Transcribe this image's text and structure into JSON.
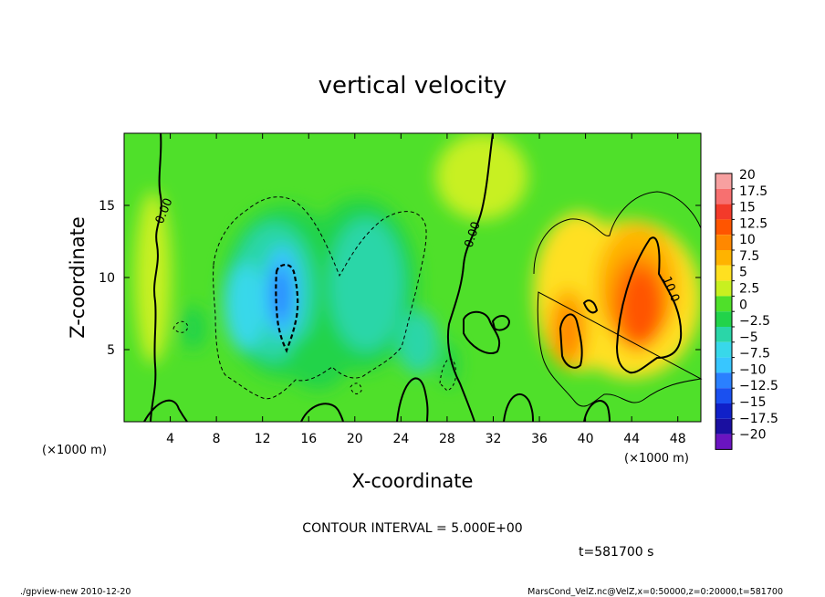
{
  "chart_data": {
    "type": "heatmap",
    "title": "vertical velocity",
    "xlabel": "X-coordinate",
    "ylabel": "Z-coordinate",
    "x_unit_label": "(×1000 m)",
    "z_unit_label": "(×1000 m)",
    "xlim": [
      0,
      50
    ],
    "ylim": [
      0,
      20
    ],
    "x_ticks": [
      4,
      8,
      12,
      16,
      20,
      24,
      28,
      32,
      36,
      40,
      44,
      48
    ],
    "y_ticks": [
      5,
      10,
      15
    ],
    "contour_interval_text": "CONTOUR INTERVAL = 5.000E+00",
    "time_text": "t=581700 s",
    "contour_labels": [
      "0.00",
      "0.00",
      "10.0"
    ],
    "colorbar": {
      "labels": [
        "20",
        "17.5",
        "15",
        "12.5",
        "10",
        "7.5",
        "5",
        "2.5",
        "0",
        "−2.5",
        "−5",
        "−7.5",
        "−10",
        "−12.5",
        "−15",
        "−17.5",
        "−20"
      ],
      "values": [
        20,
        17.5,
        15,
        12.5,
        10,
        7.5,
        5,
        2.5,
        0,
        -2.5,
        -5,
        -7.5,
        -10,
        -12.5,
        -15,
        -17.5,
        -20
      ],
      "colors": [
        "#f7a0a0",
        "#f77070",
        "#f33a2a",
        "#ff5500",
        "#ff8800",
        "#ffb300",
        "#ffe020",
        "#c8f020",
        "#4fe02a",
        "#22d34a",
        "#2ad6a8",
        "#38d8ea",
        "#38c6ff",
        "#2a80ff",
        "#1a50f0",
        "#1020c8",
        "#1a0fa0",
        "#6a14c0"
      ]
    },
    "features": [
      {
        "kind": "updraft",
        "x": 44.5,
        "z": 8.5,
        "peak": 14
      },
      {
        "kind": "updraft",
        "x": 38.5,
        "z": 6.5,
        "peak": 11
      },
      {
        "kind": "updraft",
        "x": 42,
        "z": 11,
        "peak": 7
      },
      {
        "kind": "downdraft",
        "x": 13.5,
        "z": 9,
        "peak": -11
      },
      {
        "kind": "downdraft",
        "x": 11,
        "z": 8,
        "peak": -6
      },
      {
        "kind": "downdraft",
        "x": 21,
        "z": 9.5,
        "peak": -6
      },
      {
        "kind": "downdraft",
        "x": 17,
        "z": 5,
        "peak": -4
      }
    ]
  },
  "footer": {
    "left": "./gpview-new  2010-12-20",
    "right": "MarsCond_VelZ.nc@VelZ,x=0:50000,z=0:20000,t=581700"
  }
}
